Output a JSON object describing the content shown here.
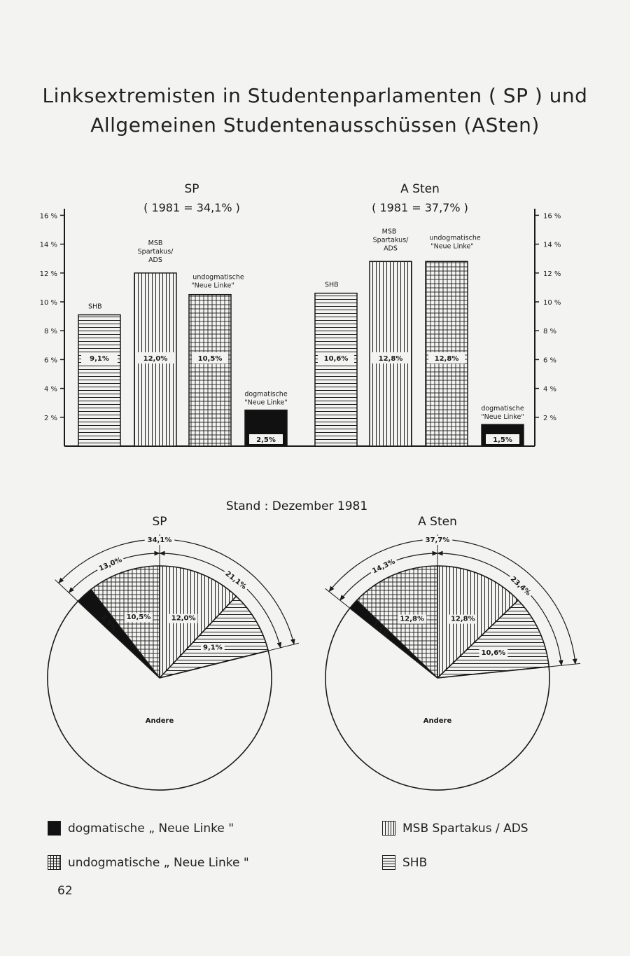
{
  "title": {
    "line1": "Linksextremisten in Studentenparlamenten ( SP ) und",
    "line2": "Allgemeinen Studentenausschüssen (ASten)"
  },
  "chart_data": [
    {
      "type": "bar",
      "groups": [
        {
          "heading": "SP",
          "subheading": "( 1981 = 34,1% )",
          "bars": [
            {
              "label": "SHB",
              "value": 9.1,
              "value_label": "9,1%",
              "pattern": "horizontal"
            },
            {
              "label": "MSB Spartakus/ ADS",
              "value": 12.0,
              "value_label": "12,0%",
              "pattern": "vertical"
            },
            {
              "label": "undogmatische \"Neue Linke\"",
              "value": 10.5,
              "value_label": "10,5%",
              "pattern": "grid"
            },
            {
              "label": "dogmatische \"Neue Linke\"",
              "value": 2.5,
              "value_label": "2,5%",
              "pattern": "solid"
            }
          ]
        },
        {
          "heading": "A Sten",
          "subheading": "( 1981 = 37,7% )",
          "bars": [
            {
              "label": "SHB",
              "value": 10.6,
              "value_label": "10,6%",
              "pattern": "horizontal"
            },
            {
              "label": "MSB Spartakus/ ADS",
              "value": 12.8,
              "value_label": "12,8%",
              "pattern": "vertical"
            },
            {
              "label": "undogmatische \"Neue Linke\"",
              "value": 12.8,
              "value_label": "12,8%",
              "pattern": "grid"
            },
            {
              "label": "dogmatische \"Neue Linke\"",
              "value": 1.5,
              "value_label": "1,5%",
              "pattern": "solid"
            }
          ]
        }
      ],
      "y_ticks": [
        2,
        4,
        6,
        8,
        10,
        12,
        14,
        16
      ],
      "y_tick_labels": [
        "2 %",
        "4 %",
        "6 %",
        "8 %",
        "10 %",
        "12 %",
        "14 %",
        "16 %"
      ],
      "ylim": [
        0,
        16.5
      ]
    },
    {
      "type": "pie",
      "caption": "Stand : Dezember 1981",
      "charts": [
        {
          "heading": "SP",
          "total_label": "34,1%",
          "arc_left_label": "13,0%",
          "arc_right_label": "21,1%",
          "slices": [
            {
              "label": "2,5%",
              "value": 2.5,
              "pattern": "solid"
            },
            {
              "label": "10,5%",
              "value": 10.5,
              "pattern": "grid"
            },
            {
              "label": "12,0%",
              "value": 12.0,
              "pattern": "vertical"
            },
            {
              "label": "9,1%",
              "value": 9.1,
              "pattern": "horizontal"
            },
            {
              "label": "Andere",
              "value": 65.9,
              "pattern": "none"
            }
          ]
        },
        {
          "heading": "A Sten",
          "total_label": "37,7%",
          "arc_left_label": "14,3%",
          "arc_right_label": "23,4%",
          "slices": [
            {
              "label": "1,5%",
              "value": 1.5,
              "pattern": "solid"
            },
            {
              "label": "12,8%",
              "value": 12.8,
              "pattern": "grid"
            },
            {
              "label": "12,8%",
              "value": 12.8,
              "pattern": "vertical"
            },
            {
              "label": "10,6%",
              "value": 10.6,
              "pattern": "horizontal"
            },
            {
              "label": "Andere",
              "value": 62.3,
              "pattern": "none"
            }
          ]
        }
      ]
    }
  ],
  "legend": [
    {
      "label": "dogmatische „ Neue Linke \"",
      "pattern": "solid"
    },
    {
      "label": "MSB Spartakus / ADS",
      "pattern": "vertical"
    },
    {
      "label": "undogmatische „ Neue Linke \"",
      "pattern": "grid"
    },
    {
      "label": "SHB",
      "pattern": "horizontal"
    }
  ],
  "page_number": "62",
  "colors": {
    "ink": "#1a1a1a",
    "paper": "#f3f3f1"
  }
}
